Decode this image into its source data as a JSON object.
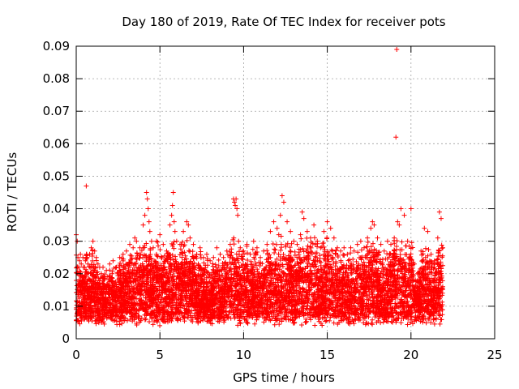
{
  "chart_data": {
    "type": "scatter",
    "title": "Day 180 of 2019, Rate Of TEC Index for receiver pots",
    "xlabel": "GPS time / hours",
    "ylabel": "ROTI / TECUs",
    "xlim": [
      0,
      25
    ],
    "ylim": [
      0,
      0.09
    ],
    "xticks": [
      0,
      5,
      10,
      15,
      20,
      25
    ],
    "xtick_labels": [
      "0",
      "5",
      "10",
      "15",
      "20",
      "25"
    ],
    "yticks": [
      0,
      0.01,
      0.02,
      0.03,
      0.04,
      0.05,
      0.06,
      0.07,
      0.08,
      0.09
    ],
    "ytick_labels": [
      "0",
      "0.01",
      "0.02",
      "0.03",
      "0.04",
      "0.05",
      "0.06",
      "0.07",
      "0.08",
      "0.09"
    ],
    "grid": true,
    "marker": "+",
    "marker_color": "#ff0000",
    "series": [
      {
        "name": "ROTI",
        "x": [
          0.0,
          0.06,
          0.1,
          0.15,
          0.2,
          0.25,
          0.3,
          0.4,
          0.5,
          0.55,
          0.6,
          0.65,
          0.7,
          0.8,
          0.9,
          1.0,
          1.1,
          1.2,
          1.3,
          1.4,
          1.5,
          1.6,
          1.8,
          2.0,
          2.2,
          2.4,
          2.6,
          2.8,
          3.0,
          3.2,
          3.4,
          3.5,
          3.6,
          3.8,
          4.0,
          4.1,
          4.2,
          4.25,
          4.3,
          4.35,
          4.4,
          4.5,
          4.6,
          4.8,
          5.0,
          5.2,
          5.4,
          5.6,
          5.7,
          5.75,
          5.8,
          5.85,
          5.9,
          6.0,
          6.2,
          6.4,
          6.6,
          6.7,
          6.8,
          7.0,
          7.2,
          7.4,
          7.6,
          7.8,
          8.0,
          8.2,
          8.4,
          8.6,
          8.8,
          9.0,
          9.2,
          9.4,
          9.45,
          9.5,
          9.55,
          9.6,
          9.65,
          9.7,
          9.8,
          10.0,
          10.2,
          10.4,
          10.6,
          10.8,
          11.0,
          11.2,
          11.4,
          11.6,
          11.8,
          12.0,
          12.1,
          12.2,
          12.3,
          12.4,
          12.6,
          12.8,
          13.0,
          13.2,
          13.4,
          13.5,
          13.6,
          13.8,
          14.0,
          14.2,
          14.4,
          14.6,
          14.8,
          15.0,
          15.2,
          15.4,
          15.6,
          15.8,
          16.0,
          16.2,
          16.4,
          16.6,
          16.8,
          17.0,
          17.2,
          17.4,
          17.6,
          17.7,
          17.8,
          18.0,
          18.2,
          18.4,
          18.6,
          18.8,
          19.0,
          19.1,
          19.15,
          19.2,
          19.3,
          19.4,
          19.6,
          19.8,
          20.0,
          20.2,
          20.4,
          20.6,
          20.8,
          21.0,
          21.2,
          21.4,
          21.6,
          21.7,
          21.8,
          21.9
        ],
        "y_high": [
          0.032,
          0.03,
          0.025,
          0.022,
          0.024,
          0.026,
          0.023,
          0.025,
          0.022,
          0.024,
          0.047,
          0.025,
          0.023,
          0.026,
          0.028,
          0.03,
          0.027,
          0.025,
          0.023,
          0.022,
          0.02,
          0.022,
          0.021,
          0.023,
          0.024,
          0.022,
          0.025,
          0.026,
          0.027,
          0.029,
          0.028,
          0.031,
          0.03,
          0.028,
          0.035,
          0.038,
          0.045,
          0.043,
          0.04,
          0.036,
          0.033,
          0.03,
          0.028,
          0.03,
          0.032,
          0.029,
          0.027,
          0.035,
          0.038,
          0.041,
          0.045,
          0.036,
          0.033,
          0.03,
          0.029,
          0.033,
          0.036,
          0.035,
          0.031,
          0.029,
          0.026,
          0.028,
          0.025,
          0.026,
          0.024,
          0.025,
          0.028,
          0.026,
          0.025,
          0.027,
          0.029,
          0.043,
          0.042,
          0.041,
          0.043,
          0.04,
          0.038,
          0.03,
          0.028,
          0.027,
          0.029,
          0.026,
          0.03,
          0.028,
          0.025,
          0.027,
          0.029,
          0.033,
          0.036,
          0.034,
          0.032,
          0.038,
          0.044,
          0.042,
          0.036,
          0.033,
          0.03,
          0.029,
          0.032,
          0.039,
          0.037,
          0.033,
          0.031,
          0.035,
          0.03,
          0.028,
          0.033,
          0.036,
          0.034,
          0.031,
          0.028,
          0.027,
          0.028,
          0.026,
          0.028,
          0.027,
          0.029,
          0.03,
          0.028,
          0.031,
          0.034,
          0.036,
          0.035,
          0.031,
          0.029,
          0.027,
          0.03,
          0.029,
          0.031,
          0.062,
          0.089,
          0.036,
          0.035,
          0.04,
          0.038,
          0.03,
          0.04,
          0.023,
          0.02,
          0.027,
          0.034,
          0.033,
          0.026,
          0.024,
          0.031,
          0.039,
          0.037,
          0.028
        ]
      }
    ]
  }
}
